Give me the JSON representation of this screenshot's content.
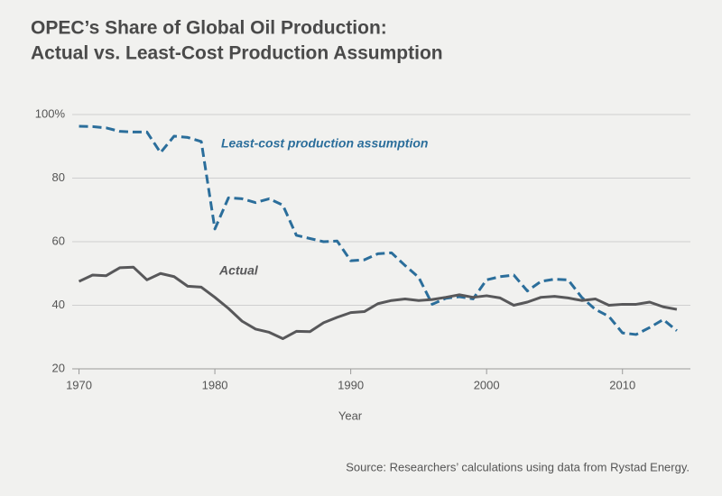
{
  "chart_data": {
    "type": "line",
    "title": [
      "OPEC’s Share of Global Oil Production:",
      "Actual vs. Least-Cost Production Assumption"
    ],
    "x_label": "Year",
    "source": "Source: Researchers’ calculations using data from Rystad Energy.",
    "x": [
      1970,
      1971,
      1972,
      1973,
      1974,
      1975,
      1976,
      1977,
      1978,
      1979,
      1980,
      1981,
      1982,
      1983,
      1984,
      1985,
      1986,
      1987,
      1988,
      1989,
      1990,
      1991,
      1992,
      1993,
      1994,
      1995,
      1996,
      1997,
      1998,
      1999,
      2000,
      2001,
      2002,
      2003,
      2004,
      2005,
      2006,
      2007,
      2008,
      2009,
      2010,
      2011,
      2012,
      2013,
      2014
    ],
    "series": [
      {
        "name": "Least-cost production assumption",
        "color": "#2b6e9b",
        "dashed": true,
        "values": [
          96.3,
          96.2,
          95.8,
          94.7,
          94.5,
          94.5,
          88,
          93.2,
          92.8,
          91.5,
          64,
          73.8,
          73.5,
          72.3,
          73.5,
          71.5,
          62,
          61,
          60,
          60.2,
          54,
          54.3,
          56.2,
          56.5,
          52.5,
          48.8,
          40.3,
          42.2,
          42.7,
          42,
          48,
          49,
          49.5,
          44.5,
          47.5,
          48.2,
          48,
          42.5,
          38.7,
          36.5,
          31.3,
          30.8,
          33,
          35.5,
          32
        ]
      },
      {
        "name": "Actual",
        "color": "#58585a",
        "dashed": false,
        "values": [
          47.5,
          49.5,
          49.3,
          51.8,
          52,
          48,
          50,
          49,
          46,
          45.7,
          42.5,
          39,
          35,
          32.5,
          31.5,
          29.5,
          31.8,
          31.7,
          34.5,
          36.2,
          37.7,
          38,
          40.5,
          41.5,
          42,
          41.5,
          41.8,
          42.5,
          43.3,
          42.5,
          43,
          42.3,
          40,
          41,
          42.5,
          42.8,
          42.3,
          41.5,
          42,
          40,
          40.3,
          40.3,
          41,
          39.5,
          38.7
        ]
      }
    ],
    "xlim": [
      1969.5,
      2015
    ],
    "xticks": [
      1970,
      1980,
      1990,
      2000,
      2010
    ],
    "ylim": [
      20,
      100
    ],
    "yticks": [
      20,
      40,
      60,
      80,
      {
        "value": 100,
        "label": "100%"
      }
    ],
    "grid": true
  }
}
